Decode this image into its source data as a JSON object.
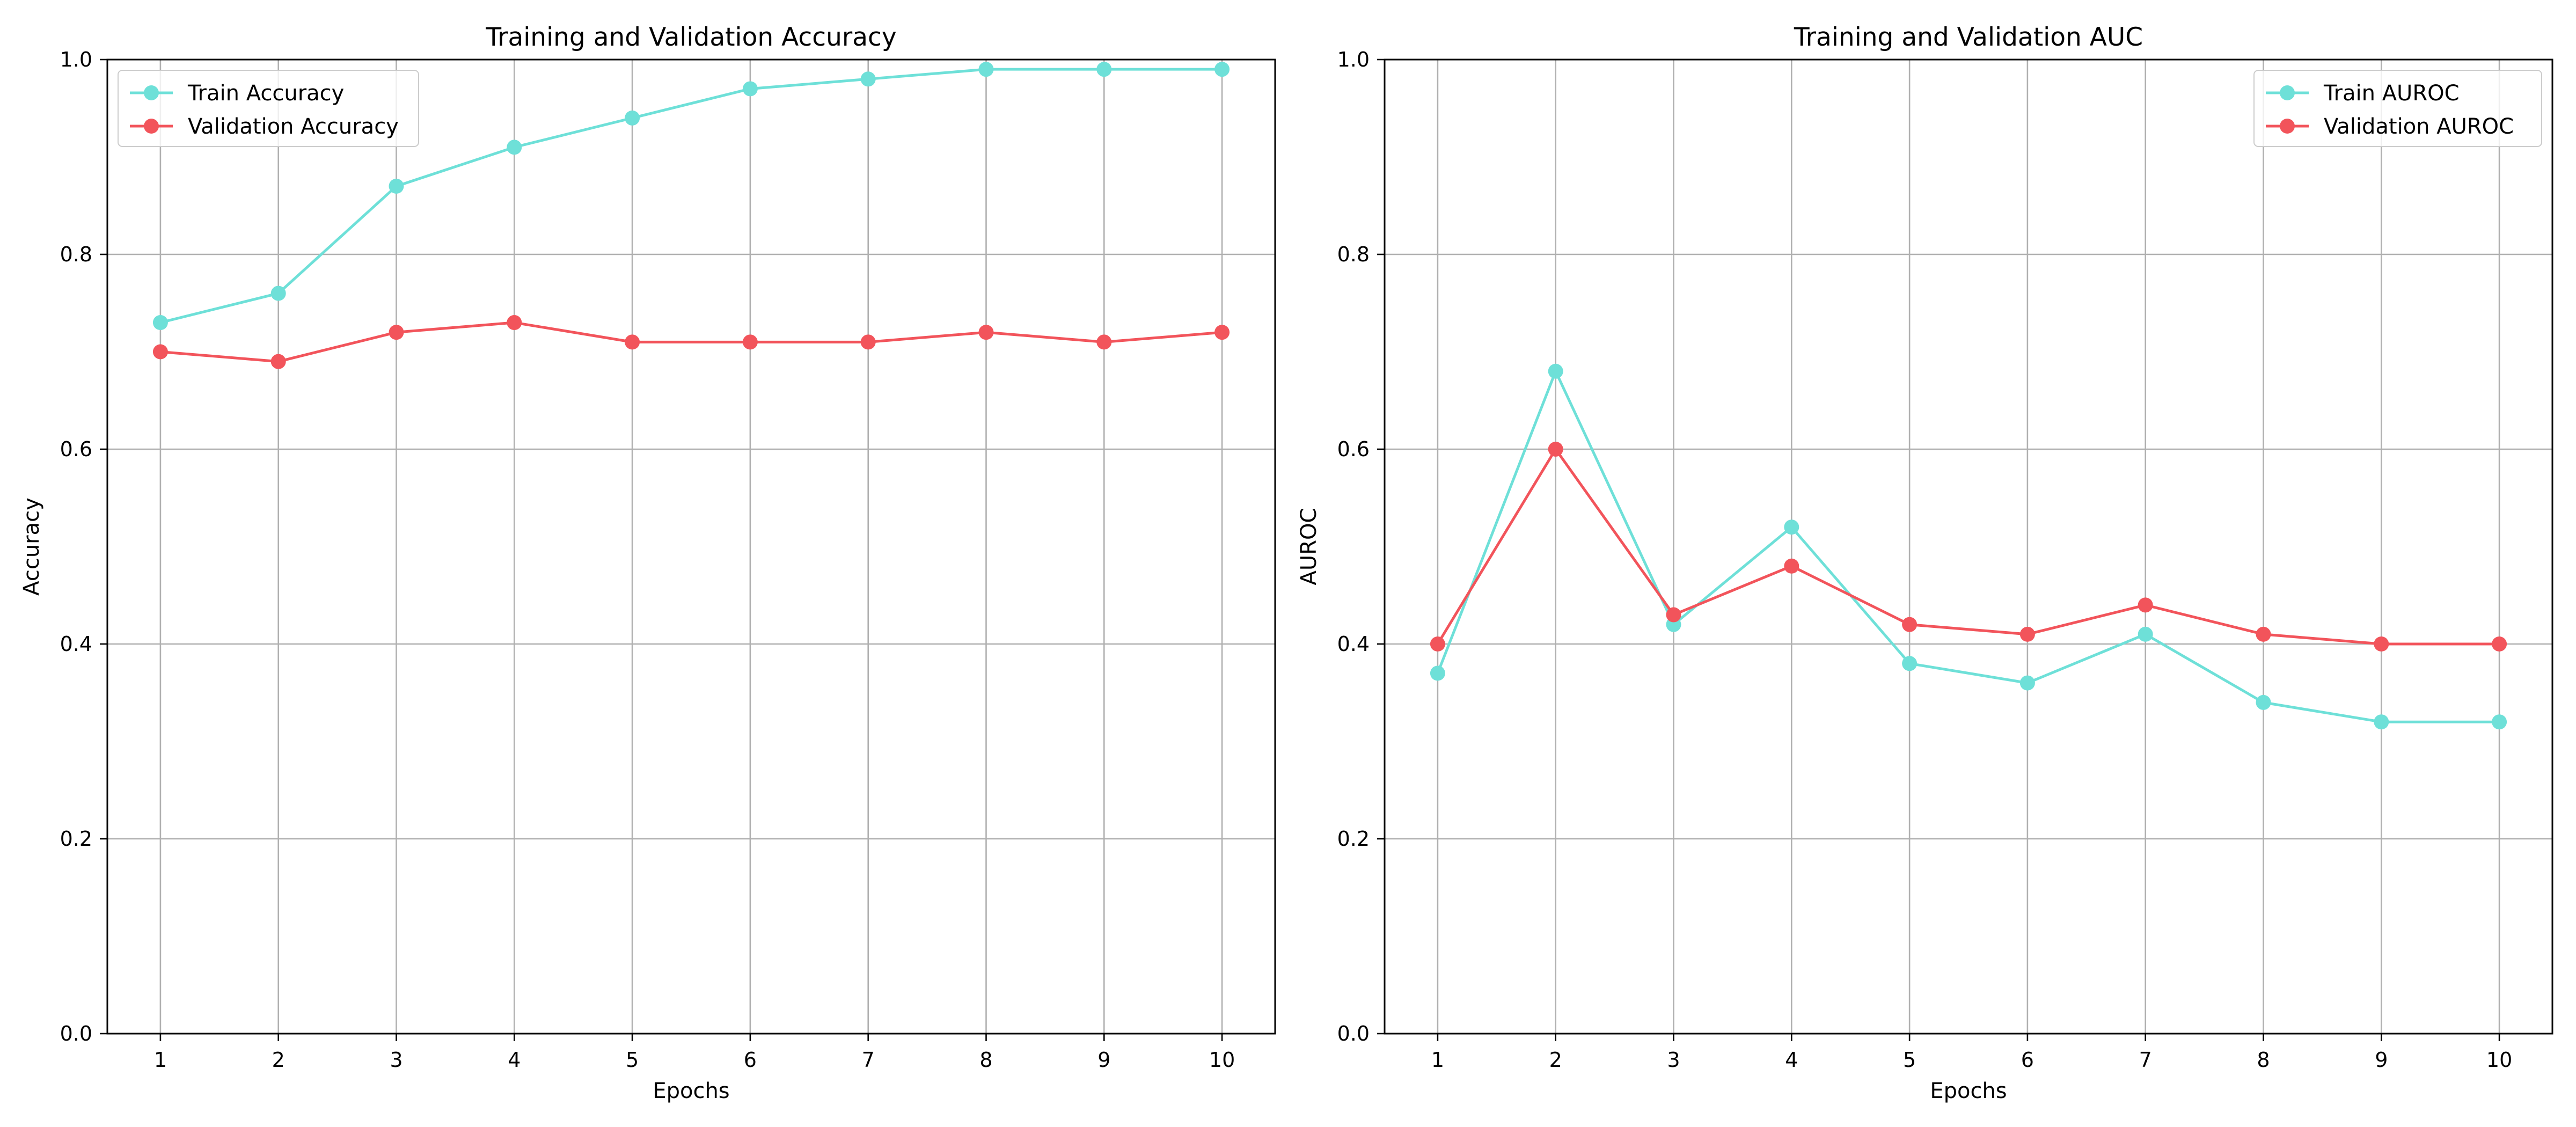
{
  "chart_data": [
    {
      "type": "line",
      "title": "Training and Validation Accuracy",
      "xlabel": "Epochs",
      "ylabel": "Accuracy",
      "x": [
        1,
        2,
        3,
        4,
        5,
        6,
        7,
        8,
        9,
        10
      ],
      "xlim": [
        0.55,
        10.45
      ],
      "ylim": [
        0.0,
        1.0
      ],
      "xticks": [
        1,
        2,
        3,
        4,
        5,
        6,
        7,
        8,
        9,
        10
      ],
      "yticks": [
        "0.0",
        "0.2",
        "0.4",
        "0.6",
        "0.8",
        "1.0"
      ],
      "grid": true,
      "legend_position": "upper-left",
      "series": [
        {
          "name": "Train Accuracy",
          "color": "#6ee0d8",
          "marker": "circle",
          "values": [
            0.73,
            0.76,
            0.87,
            0.91,
            0.94,
            0.97,
            0.98,
            0.99,
            0.99,
            0.99
          ]
        },
        {
          "name": "Validation Accuracy",
          "color": "#f2545b",
          "marker": "circle",
          "values": [
            0.7,
            0.69,
            0.72,
            0.73,
            0.71,
            0.71,
            0.71,
            0.72,
            0.71,
            0.72
          ]
        }
      ]
    },
    {
      "type": "line",
      "title": "Training and Validation AUC",
      "xlabel": "Epochs",
      "ylabel": "AUROC",
      "x": [
        1,
        2,
        3,
        4,
        5,
        6,
        7,
        8,
        9,
        10
      ],
      "xlim": [
        0.55,
        10.45
      ],
      "ylim": [
        0.0,
        1.0
      ],
      "xticks": [
        1,
        2,
        3,
        4,
        5,
        6,
        7,
        8,
        9,
        10
      ],
      "yticks": [
        "0.0",
        "0.2",
        "0.4",
        "0.6",
        "0.8",
        "1.0"
      ],
      "grid": true,
      "legend_position": "upper-right",
      "series": [
        {
          "name": "Train AUROC",
          "color": "#6ee0d8",
          "marker": "circle",
          "values": [
            0.37,
            0.68,
            0.42,
            0.52,
            0.38,
            0.36,
            0.41,
            0.34,
            0.32,
            0.32
          ]
        },
        {
          "name": "Validation AUROC",
          "color": "#f2545b",
          "marker": "circle",
          "values": [
            0.4,
            0.6,
            0.43,
            0.48,
            0.42,
            0.41,
            0.44,
            0.41,
            0.4,
            0.4
          ]
        }
      ]
    }
  ]
}
